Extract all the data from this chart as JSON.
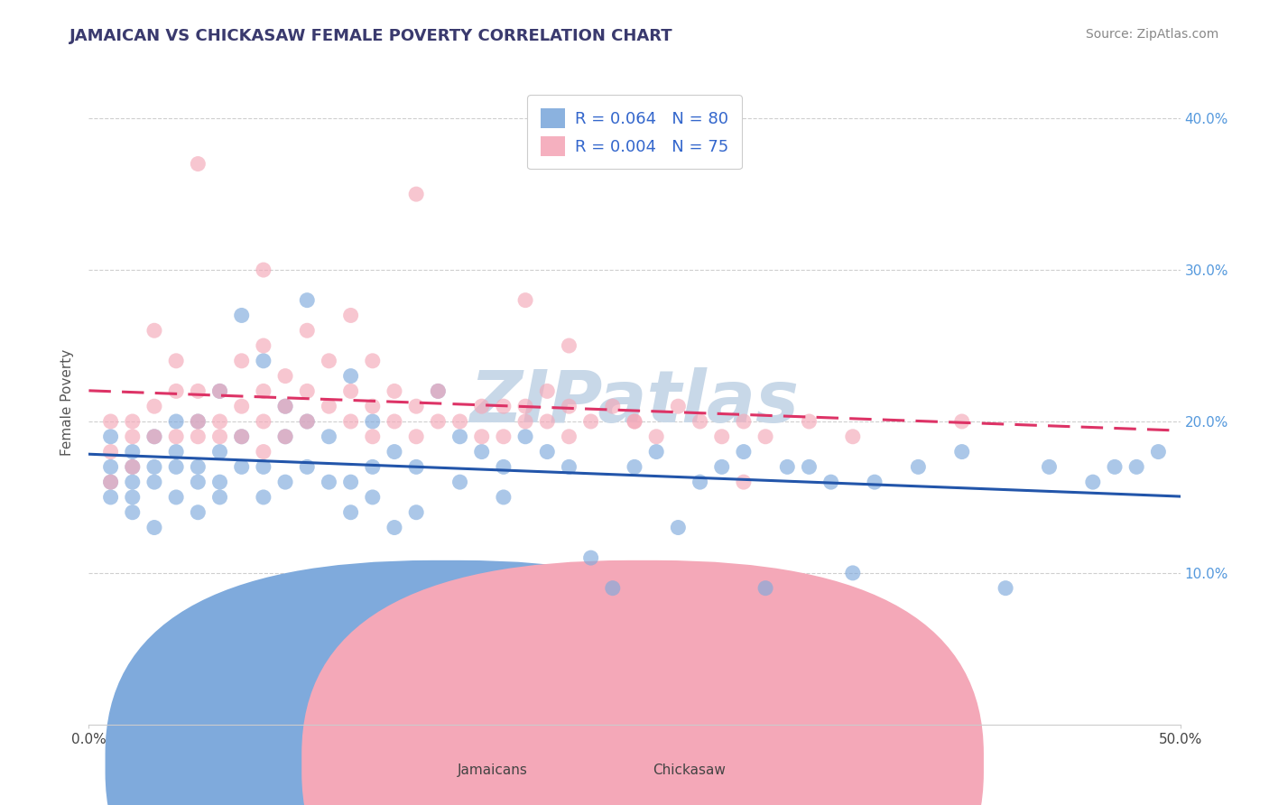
{
  "title": "JAMAICAN VS CHICKASAW FEMALE POVERTY CORRELATION CHART",
  "source": "Source: ZipAtlas.com",
  "ylabel": "Female Poverty",
  "xlim": [
    0.0,
    0.5
  ],
  "ylim": [
    0.0,
    0.425
  ],
  "yticks": [
    0.1,
    0.2,
    0.3,
    0.4
  ],
  "ytick_labels": [
    "10.0%",
    "20.0%",
    "30.0%",
    "40.0%"
  ],
  "xticks": [
    0.0,
    0.1,
    0.2,
    0.3,
    0.4,
    0.5
  ],
  "xtick_labels_bottom": [
    "0.0%",
    "",
    "",
    "",
    "",
    "50.0%"
  ],
  "jamaican_R": 0.064,
  "jamaican_N": 80,
  "chickasaw_R": 0.004,
  "chickasaw_N": 75,
  "jamaican_color": "#7faadc",
  "chickasaw_color": "#f4a8b8",
  "jamaican_line_color": "#2255aa",
  "chickasaw_line_color": "#dd3366",
  "watermark": "ZIPatlas",
  "watermark_color": "#c8d8e8",
  "background_color": "#ffffff",
  "grid_color": "#bbbbbb",
  "legend_label_1": "Jamaicans",
  "legend_label_2": "Chickasaw",
  "jamaican_x": [
    0.01,
    0.01,
    0.01,
    0.01,
    0.02,
    0.02,
    0.02,
    0.02,
    0.02,
    0.03,
    0.03,
    0.03,
    0.03,
    0.04,
    0.04,
    0.04,
    0.04,
    0.05,
    0.05,
    0.05,
    0.05,
    0.06,
    0.06,
    0.06,
    0.06,
    0.07,
    0.07,
    0.07,
    0.08,
    0.08,
    0.08,
    0.09,
    0.09,
    0.09,
    0.1,
    0.1,
    0.1,
    0.11,
    0.11,
    0.12,
    0.12,
    0.12,
    0.13,
    0.13,
    0.13,
    0.14,
    0.14,
    0.15,
    0.15,
    0.16,
    0.17,
    0.17,
    0.18,
    0.19,
    0.19,
    0.2,
    0.21,
    0.22,
    0.23,
    0.24,
    0.25,
    0.26,
    0.27,
    0.28,
    0.29,
    0.3,
    0.31,
    0.32,
    0.33,
    0.34,
    0.35,
    0.36,
    0.38,
    0.4,
    0.42,
    0.44,
    0.46,
    0.47,
    0.48,
    0.49
  ],
  "jamaican_y": [
    0.17,
    0.19,
    0.16,
    0.15,
    0.18,
    0.16,
    0.14,
    0.17,
    0.15,
    0.17,
    0.19,
    0.16,
    0.13,
    0.18,
    0.15,
    0.17,
    0.2,
    0.16,
    0.14,
    0.17,
    0.2,
    0.16,
    0.18,
    0.15,
    0.22,
    0.17,
    0.19,
    0.27,
    0.15,
    0.17,
    0.24,
    0.16,
    0.19,
    0.21,
    0.17,
    0.2,
    0.28,
    0.16,
    0.19,
    0.16,
    0.14,
    0.23,
    0.17,
    0.2,
    0.15,
    0.13,
    0.18,
    0.14,
    0.17,
    0.22,
    0.16,
    0.19,
    0.18,
    0.17,
    0.15,
    0.19,
    0.18,
    0.17,
    0.11,
    0.09,
    0.17,
    0.18,
    0.13,
    0.16,
    0.17,
    0.18,
    0.09,
    0.17,
    0.17,
    0.16,
    0.1,
    0.16,
    0.17,
    0.18,
    0.09,
    0.17,
    0.16,
    0.17,
    0.17,
    0.18
  ],
  "chickasaw_x": [
    0.01,
    0.01,
    0.01,
    0.02,
    0.02,
    0.02,
    0.03,
    0.03,
    0.03,
    0.04,
    0.04,
    0.04,
    0.05,
    0.05,
    0.05,
    0.06,
    0.06,
    0.06,
    0.07,
    0.07,
    0.07,
    0.08,
    0.08,
    0.08,
    0.08,
    0.09,
    0.09,
    0.09,
    0.1,
    0.1,
    0.1,
    0.11,
    0.11,
    0.12,
    0.12,
    0.12,
    0.13,
    0.13,
    0.13,
    0.14,
    0.14,
    0.15,
    0.15,
    0.16,
    0.16,
    0.17,
    0.18,
    0.18,
    0.19,
    0.19,
    0.2,
    0.2,
    0.21,
    0.21,
    0.22,
    0.22,
    0.23,
    0.24,
    0.25,
    0.26,
    0.27,
    0.28,
    0.29,
    0.3,
    0.31,
    0.33,
    0.35,
    0.05,
    0.08,
    0.15,
    0.2,
    0.22,
    0.25,
    0.3,
    0.4
  ],
  "chickasaw_y": [
    0.18,
    0.2,
    0.16,
    0.19,
    0.17,
    0.2,
    0.19,
    0.21,
    0.26,
    0.19,
    0.22,
    0.24,
    0.2,
    0.22,
    0.19,
    0.2,
    0.22,
    0.19,
    0.19,
    0.21,
    0.24,
    0.18,
    0.2,
    0.22,
    0.25,
    0.19,
    0.21,
    0.23,
    0.2,
    0.22,
    0.26,
    0.21,
    0.24,
    0.2,
    0.22,
    0.27,
    0.19,
    0.21,
    0.24,
    0.2,
    0.22,
    0.19,
    0.21,
    0.2,
    0.22,
    0.2,
    0.21,
    0.19,
    0.21,
    0.19,
    0.2,
    0.21,
    0.2,
    0.22,
    0.19,
    0.21,
    0.2,
    0.21,
    0.2,
    0.19,
    0.21,
    0.2,
    0.19,
    0.2,
    0.19,
    0.2,
    0.19,
    0.37,
    0.3,
    0.35,
    0.28,
    0.25,
    0.2,
    0.16,
    0.2
  ]
}
